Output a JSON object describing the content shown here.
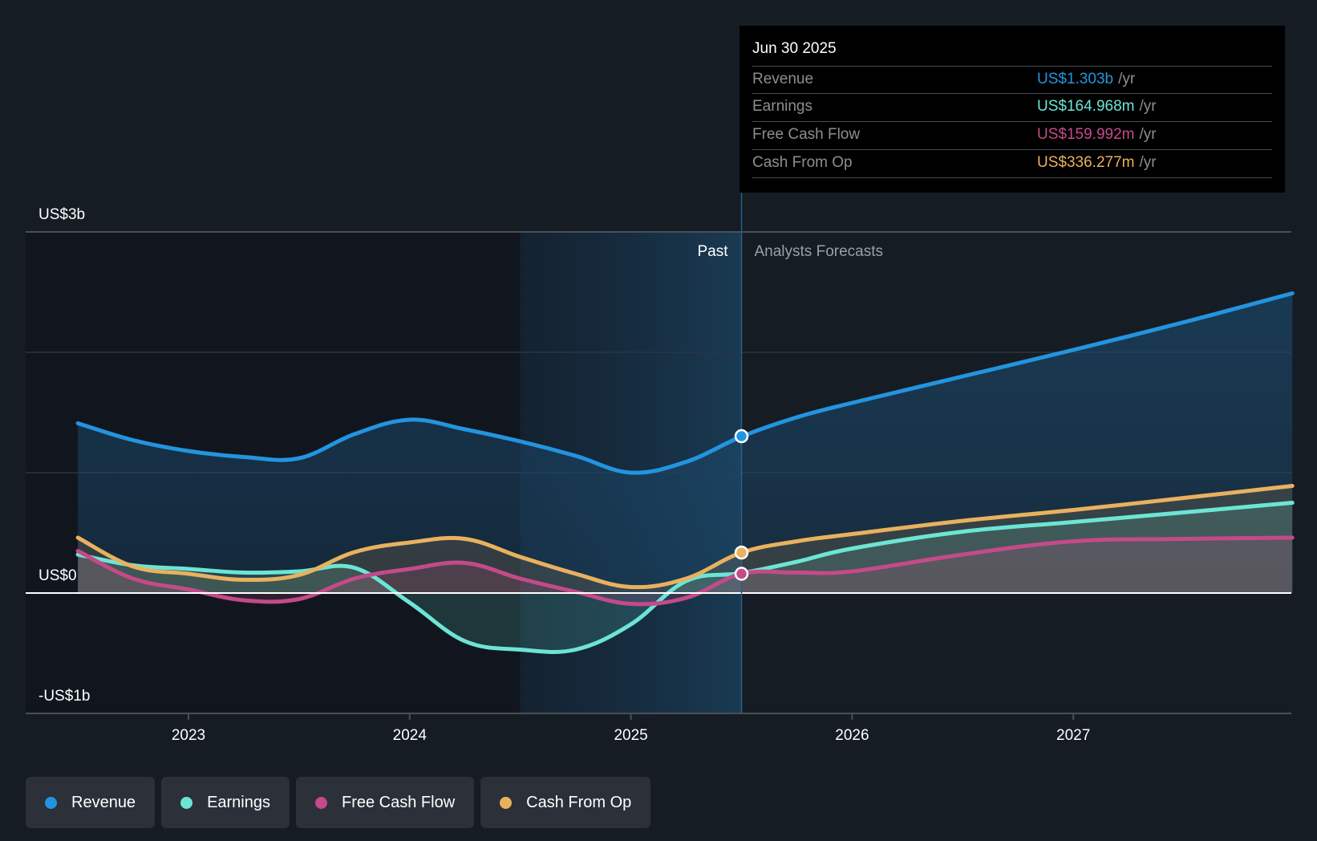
{
  "tooltip": {
    "date": "Jun 30 2025",
    "rows": [
      {
        "label": "Revenue",
        "value": "US$1.303b",
        "unit": "/yr",
        "color": "#2394df"
      },
      {
        "label": "Earnings",
        "value": "US$164.968m",
        "unit": "/yr",
        "color": "#6ce5d4"
      },
      {
        "label": "Free Cash Flow",
        "value": "US$159.992m",
        "unit": "/yr",
        "color": "#c44a8a"
      },
      {
        "label": "Cash From Op",
        "value": "US$336.277m",
        "unit": "/yr",
        "color": "#e9b15f"
      }
    ]
  },
  "segments": {
    "past": "Past",
    "forecast": "Analysts Forecasts"
  },
  "legend": [
    {
      "label": "Revenue",
      "color": "#2394df"
    },
    {
      "label": "Earnings",
      "color": "#6ce5d4"
    },
    {
      "label": "Free Cash Flow",
      "color": "#c44a8a"
    },
    {
      "label": "Cash From Op",
      "color": "#e9b15f"
    }
  ],
  "chart_data": {
    "type": "line",
    "title": "",
    "xlabel": "",
    "ylabel": "",
    "y_unit": "US$ billions",
    "ylim": [
      -1,
      3
    ],
    "xlim": [
      2022.3,
      2028.0
    ],
    "y_ticks": [
      {
        "value": 3,
        "label": "US$3b"
      },
      {
        "value": 0,
        "label": "US$0"
      },
      {
        "value": -1,
        "label": "-US$1b"
      }
    ],
    "y_gridlines": [
      3,
      2,
      1,
      0,
      -1
    ],
    "x_ticks": [
      {
        "value": 2023,
        "label": "2023"
      },
      {
        "value": 2024,
        "label": "2024"
      },
      {
        "value": 2025,
        "label": "2025"
      },
      {
        "value": 2026,
        "label": "2026"
      },
      {
        "value": 2027,
        "label": "2027"
      }
    ],
    "past_forecast_split": 2025.5,
    "highlight_band_start": 2024.5,
    "grid": true,
    "legend_position": "bottom-left",
    "series": [
      {
        "name": "Revenue",
        "color": "#2394df",
        "x": [
          2022.5,
          2022.75,
          2023.0,
          2023.25,
          2023.5,
          2023.75,
          2024.0,
          2024.25,
          2024.5,
          2024.75,
          2025.0,
          2025.25,
          2025.5,
          2025.75,
          2026.0,
          2026.5,
          2027.0,
          2027.5,
          2027.99
        ],
        "y": [
          1.41,
          1.27,
          1.18,
          1.13,
          1.12,
          1.32,
          1.44,
          1.36,
          1.26,
          1.14,
          1.0,
          1.09,
          1.3,
          1.46,
          1.58,
          1.8,
          2.02,
          2.25,
          2.49
        ]
      },
      {
        "name": "Earnings",
        "color": "#6ce5d4",
        "x": [
          2022.5,
          2022.75,
          2023.0,
          2023.25,
          2023.5,
          2023.75,
          2024.0,
          2024.25,
          2024.5,
          2024.75,
          2025.0,
          2025.25,
          2025.5,
          2025.75,
          2026.0,
          2026.5,
          2027.0,
          2027.5,
          2027.99
        ],
        "y": [
          0.32,
          0.23,
          0.2,
          0.17,
          0.18,
          0.21,
          -0.08,
          -0.4,
          -0.47,
          -0.47,
          -0.26,
          0.1,
          0.165,
          0.26,
          0.37,
          0.51,
          0.59,
          0.67,
          0.75
        ]
      },
      {
        "name": "Free Cash Flow",
        "color": "#c44a8a",
        "x": [
          2022.5,
          2022.75,
          2023.0,
          2023.25,
          2023.5,
          2023.75,
          2024.0,
          2024.25,
          2024.5,
          2024.75,
          2025.0,
          2025.25,
          2025.5,
          2025.75,
          2026.0,
          2026.5,
          2027.0,
          2027.5,
          2027.99
        ],
        "y": [
          0.35,
          0.12,
          0.03,
          -0.06,
          -0.05,
          0.12,
          0.2,
          0.25,
          0.12,
          0.01,
          -0.09,
          -0.04,
          0.16,
          0.17,
          0.18,
          0.32,
          0.43,
          0.45,
          0.46
        ]
      },
      {
        "name": "Cash From Op",
        "color": "#e9b15f",
        "x": [
          2022.5,
          2022.75,
          2023.0,
          2023.25,
          2023.5,
          2023.75,
          2024.0,
          2024.25,
          2024.5,
          2024.75,
          2025.0,
          2025.25,
          2025.5,
          2025.75,
          2026.0,
          2026.5,
          2027.0,
          2027.5,
          2027.99
        ],
        "y": [
          0.46,
          0.22,
          0.16,
          0.11,
          0.15,
          0.34,
          0.42,
          0.45,
          0.3,
          0.16,
          0.05,
          0.12,
          0.336,
          0.43,
          0.49,
          0.6,
          0.69,
          0.79,
          0.89
        ]
      }
    ],
    "markers": [
      {
        "series": "Revenue",
        "x": 2025.5,
        "y": 1.303
      },
      {
        "series": "Cash From Op",
        "x": 2025.5,
        "y": 0.336
      },
      {
        "series": "Free Cash Flow",
        "x": 2025.5,
        "y": 0.16
      }
    ]
  }
}
